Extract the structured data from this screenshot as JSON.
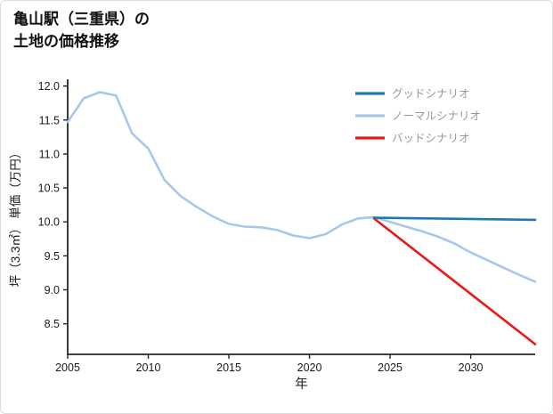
{
  "header": {
    "title_lines": [
      "亀山駅（三重県）の",
      "土地の価格推移"
    ]
  },
  "chart_data": {
    "type": "line",
    "title": "亀山駅（三重県）の土地の価格推移",
    "xlabel": "年",
    "ylabel": "坪（3.3㎡） 単価（万円）",
    "xlim": [
      2005,
      2034
    ],
    "ylim": [
      8.05,
      12.1
    ],
    "xticks": [
      2005,
      2010,
      2015,
      2020,
      2025,
      2030
    ],
    "yticks": [
      8.5,
      9.0,
      9.5,
      10.0,
      10.5,
      11.0,
      11.5,
      12.0
    ],
    "grid": false,
    "legend_position": "top-right",
    "colors": {
      "axis": "#262626",
      "tick_label": "#1a1a1a",
      "legend_text": "#999999"
    },
    "series": [
      {
        "name": "グッドシナリオ",
        "color": "#1f77b4",
        "x": [
          2024,
          2034
        ],
        "y": [
          10.06,
          10.03
        ]
      },
      {
        "name": "ノーマルシナリオ",
        "color": "#a6c8ea",
        "x": [
          2005,
          2006,
          2007,
          2008,
          2009,
          2010,
          2011,
          2012,
          2013,
          2014,
          2015,
          2016,
          2017,
          2018,
          2019,
          2020,
          2021,
          2022,
          2023,
          2024,
          2025,
          2026,
          2027,
          2028,
          2029,
          2030,
          2031,
          2032,
          2033,
          2034
        ],
        "y": [
          11.47,
          11.82,
          11.91,
          11.86,
          11.3,
          11.08,
          10.62,
          10.38,
          10.22,
          10.08,
          9.97,
          9.93,
          9.92,
          9.88,
          9.8,
          9.76,
          9.82,
          9.96,
          10.05,
          10.07,
          10.0,
          9.93,
          9.86,
          9.78,
          9.68,
          9.55,
          9.44,
          9.33,
          9.22,
          9.12
        ]
      },
      {
        "name": "バッドシナリオ",
        "color": "#ea1917",
        "x": [
          2024,
          2034
        ],
        "y": [
          10.05,
          8.2
        ]
      }
    ]
  }
}
